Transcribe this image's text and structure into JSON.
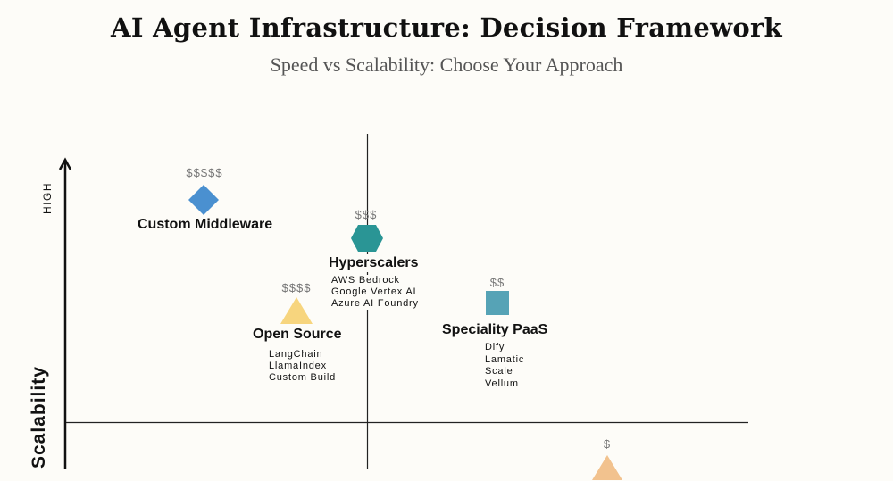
{
  "title": "AI Agent Infrastructure: Decision Framework",
  "subtitle": "Speed vs Scalability: Choose Your Approach",
  "y_axis": {
    "label": "Scalability",
    "high_label": "HIGH"
  },
  "items": [
    {
      "name": "Custom Middleware",
      "price": "$$$$$",
      "shape": "diamond",
      "color": "#4a90d0",
      "tools": []
    },
    {
      "name": "Hyperscalers",
      "price": "$$$",
      "shape": "hexagon",
      "color": "#2a9595",
      "tools": [
        "AWS Bedrock",
        "Google Vertex AI",
        "Azure AI Foundry"
      ]
    },
    {
      "name": "Open Source",
      "price": "$$$$",
      "shape": "triangle",
      "color": "#f7d57e",
      "tools": [
        "LangChain",
        "LlamaIndex",
        "Custom Build"
      ]
    },
    {
      "name": "Speciality PaaS",
      "price": "$$",
      "shape": "square",
      "color": "#56a3b6",
      "tools": [
        "Dify",
        "Lamatic",
        "Scale",
        "Vellum"
      ]
    },
    {
      "price": "$",
      "shape": "triangle",
      "color": "#f2c28e"
    }
  ]
}
